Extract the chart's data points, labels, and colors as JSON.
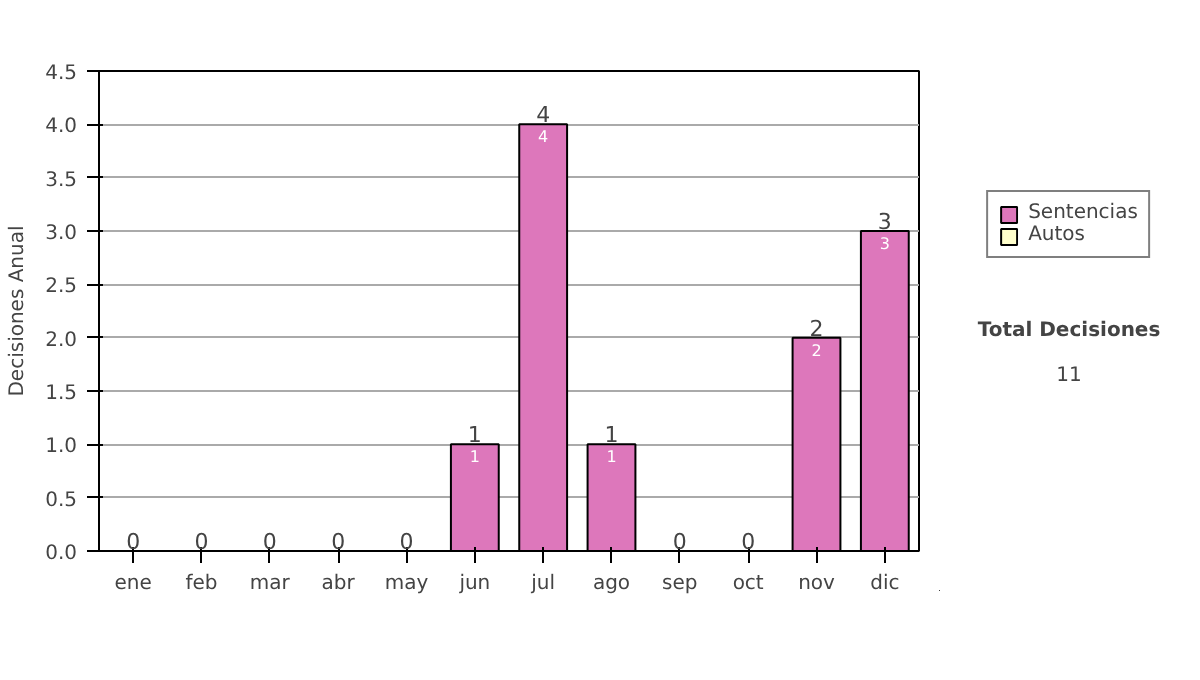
{
  "chart_data": {
    "type": "bar",
    "stacked": true,
    "ylabel": "Decisiones Anual",
    "categories": [
      "ene",
      "feb",
      "mar",
      "abr",
      "may",
      "jun",
      "jul",
      "ago",
      "sep",
      "oct",
      "nov",
      "dic"
    ],
    "series": [
      {
        "name": "Sentencias",
        "color": "#dd77bb",
        "values": [
          0,
          0,
          0,
          0,
          0,
          1,
          4,
          1,
          0,
          0,
          2,
          3
        ],
        "value_labels": [
          null,
          null,
          null,
          null,
          null,
          "1",
          "4",
          "1",
          null,
          null,
          "2",
          "3"
        ]
      },
      {
        "name": "Autos",
        "color": "#ffffcc",
        "values": [
          0,
          0,
          0,
          0,
          0,
          0,
          0,
          0,
          0,
          0,
          0,
          0
        ]
      }
    ],
    "totals": [
      "0",
      "0",
      "0",
      "0",
      "0",
      "1",
      "4",
      "1",
      "0",
      "0",
      "2",
      "3"
    ],
    "ylim": [
      0,
      4.5
    ],
    "yticks": [
      {
        "value": 0,
        "label": "0.0"
      },
      {
        "value": 0.5,
        "label": "0.5"
      },
      {
        "value": 1,
        "label": "1.0"
      },
      {
        "value": 1.5,
        "label": "1.5"
      },
      {
        "value": 2,
        "label": "2.0"
      },
      {
        "value": 2.5,
        "label": "2.5"
      },
      {
        "value": 3,
        "label": "3.0"
      },
      {
        "value": 3.5,
        "label": "3.5"
      },
      {
        "value": 4,
        "label": "4.0"
      },
      {
        "value": 4.5,
        "label": "4.5"
      }
    ],
    "grid": "y",
    "legend": "right",
    "annotations": [
      "Total Decisiones",
      "11"
    ]
  }
}
